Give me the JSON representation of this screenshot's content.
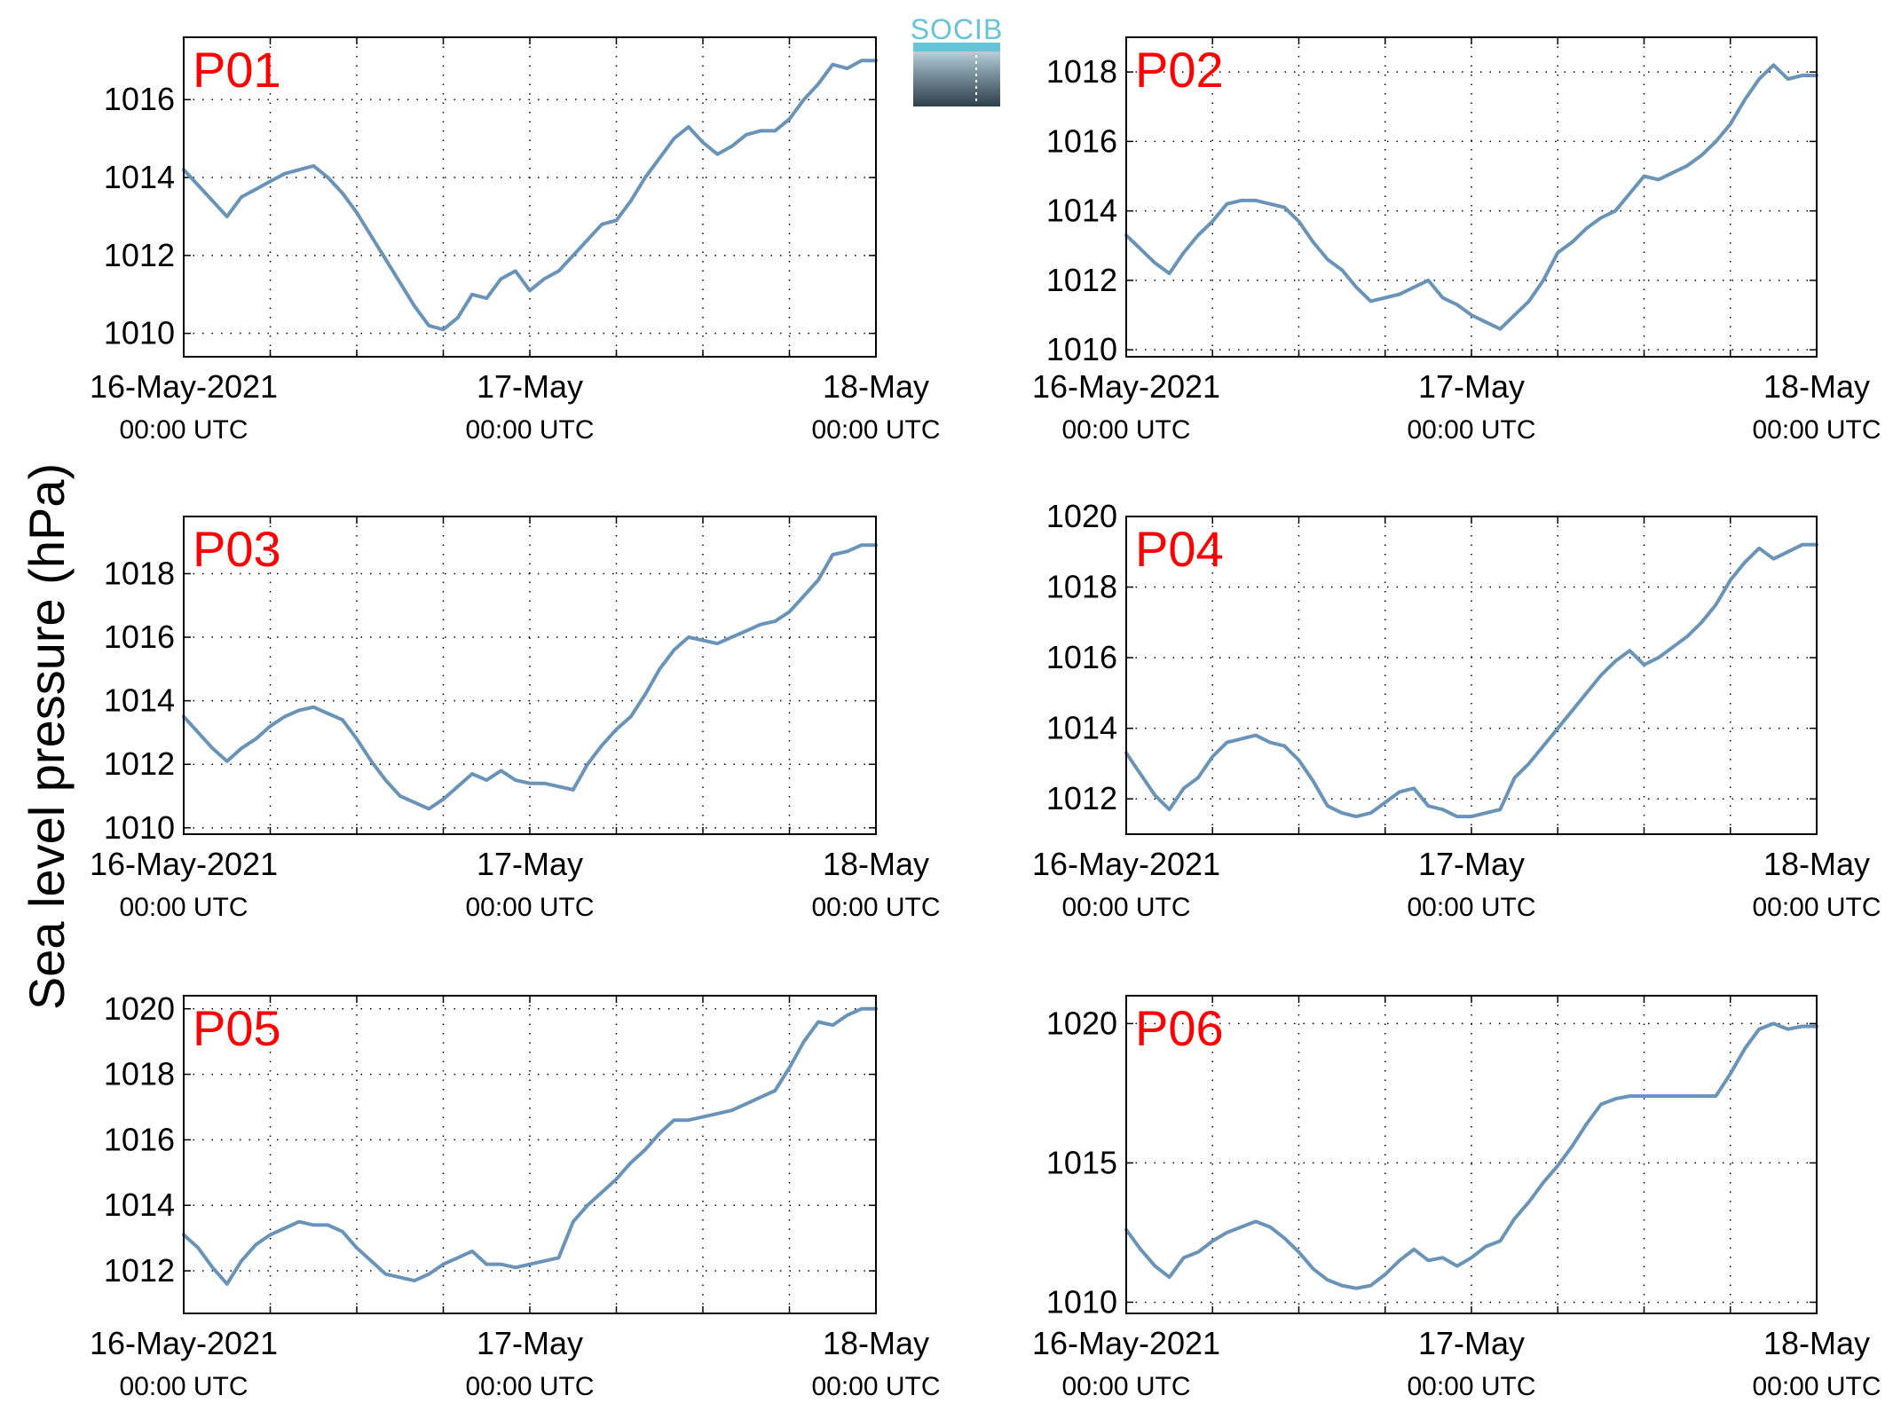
{
  "figure": {
    "ylabel": "Sea level pressure (hPa)",
    "logo_text": "SOCIB",
    "line_color": "#6a93b8",
    "title_color": "#ff0000"
  },
  "chart_data": [
    {
      "type": "line",
      "title": "P01",
      "xlabel": "",
      "ylabel": "",
      "xlim": [
        0,
        48
      ],
      "ylim": [
        1009.4,
        1017.6
      ],
      "grid": true,
      "yticks": [
        1010,
        1012,
        1014,
        1016
      ],
      "xticks": [
        {
          "x": 0,
          "label": "16-May-2021",
          "sub": "00:00 UTC"
        },
        {
          "x": 24,
          "label": "17-May",
          "sub": "00:00 UTC"
        },
        {
          "x": 48,
          "label": "18-May",
          "sub": "00:00 UTC"
        }
      ],
      "series": [
        {
          "x": [
            0,
            1,
            2,
            3,
            4,
            5,
            6,
            7,
            8,
            9,
            10,
            11,
            12,
            13,
            14,
            15,
            16,
            17,
            18,
            19,
            20,
            21,
            22,
            23,
            24,
            25,
            26,
            27,
            28,
            29,
            30,
            31,
            32,
            33,
            34,
            35,
            36,
            37,
            38,
            39,
            40,
            41,
            42,
            43,
            44,
            45,
            46,
            47,
            48
          ],
          "values": [
            1014.2,
            1013.8,
            1013.4,
            1013.0,
            1013.5,
            1013.7,
            1013.9,
            1014.1,
            1014.2,
            1014.3,
            1014.0,
            1013.6,
            1013.1,
            1012.5,
            1011.9,
            1011.3,
            1010.7,
            1010.2,
            1010.1,
            1010.4,
            1011.0,
            1010.9,
            1011.4,
            1011.6,
            1011.1,
            1011.4,
            1011.6,
            1012.0,
            1012.4,
            1012.8,
            1012.9,
            1013.4,
            1014.0,
            1014.5,
            1015.0,
            1015.3,
            1014.9,
            1014.6,
            1014.8,
            1015.1,
            1015.2,
            1015.2,
            1015.5,
            1016.0,
            1016.4,
            1016.9,
            1016.8,
            1017.0,
            1017.0
          ]
        }
      ]
    },
    {
      "type": "line",
      "title": "P02",
      "xlabel": "",
      "ylabel": "",
      "xlim": [
        0,
        48
      ],
      "ylim": [
        1009.8,
        1019.0
      ],
      "grid": true,
      "yticks": [
        1010,
        1012,
        1014,
        1016,
        1018
      ],
      "xticks": [
        {
          "x": 0,
          "label": "16-May-2021",
          "sub": "00:00 UTC"
        },
        {
          "x": 24,
          "label": "17-May",
          "sub": "00:00 UTC"
        },
        {
          "x": 48,
          "label": "18-May",
          "sub": "00:00 UTC"
        }
      ],
      "series": [
        {
          "x": [
            0,
            1,
            2,
            3,
            4,
            5,
            6,
            7,
            8,
            9,
            10,
            11,
            12,
            13,
            14,
            15,
            16,
            17,
            18,
            19,
            20,
            21,
            22,
            23,
            24,
            25,
            26,
            27,
            28,
            29,
            30,
            31,
            32,
            33,
            34,
            35,
            36,
            37,
            38,
            39,
            40,
            41,
            42,
            43,
            44,
            45,
            46,
            47,
            48
          ],
          "values": [
            1013.3,
            1012.9,
            1012.5,
            1012.2,
            1012.8,
            1013.3,
            1013.7,
            1014.2,
            1014.3,
            1014.3,
            1014.2,
            1014.1,
            1013.7,
            1013.1,
            1012.6,
            1012.3,
            1011.8,
            1011.4,
            1011.5,
            1011.6,
            1011.8,
            1012.0,
            1011.5,
            1011.3,
            1011.0,
            1010.8,
            1010.6,
            1011.0,
            1011.4,
            1012.0,
            1012.8,
            1013.1,
            1013.5,
            1013.8,
            1014.0,
            1014.5,
            1015.0,
            1014.9,
            1015.1,
            1015.3,
            1015.6,
            1016.0,
            1016.5,
            1017.2,
            1017.8,
            1018.2,
            1017.8,
            1017.9,
            1017.9
          ]
        }
      ]
    },
    {
      "type": "line",
      "title": "P03",
      "xlabel": "",
      "ylabel": "",
      "xlim": [
        0,
        48
      ],
      "ylim": [
        1009.8,
        1019.8
      ],
      "grid": true,
      "yticks": [
        1010,
        1012,
        1014,
        1016,
        1018
      ],
      "xticks": [
        {
          "x": 0,
          "label": "16-May-2021",
          "sub": "00:00 UTC"
        },
        {
          "x": 24,
          "label": "17-May",
          "sub": "00:00 UTC"
        },
        {
          "x": 48,
          "label": "18-May",
          "sub": "00:00 UTC"
        }
      ],
      "series": [
        {
          "x": [
            0,
            1,
            2,
            3,
            4,
            5,
            6,
            7,
            8,
            9,
            10,
            11,
            12,
            13,
            14,
            15,
            16,
            17,
            18,
            19,
            20,
            21,
            22,
            23,
            24,
            25,
            26,
            27,
            28,
            29,
            30,
            31,
            32,
            33,
            34,
            35,
            36,
            37,
            38,
            39,
            40,
            41,
            42,
            43,
            44,
            45,
            46,
            47,
            48
          ],
          "values": [
            1013.5,
            1013.0,
            1012.5,
            1012.1,
            1012.5,
            1012.8,
            1013.2,
            1013.5,
            1013.7,
            1013.8,
            1013.6,
            1013.4,
            1012.8,
            1012.1,
            1011.5,
            1011.0,
            1010.8,
            1010.6,
            1010.9,
            1011.3,
            1011.7,
            1011.5,
            1011.8,
            1011.5,
            1011.4,
            1011.4,
            1011.3,
            1011.2,
            1012.0,
            1012.6,
            1013.1,
            1013.5,
            1014.2,
            1015.0,
            1015.6,
            1016.0,
            1015.9,
            1015.8,
            1016.0,
            1016.2,
            1016.4,
            1016.5,
            1016.8,
            1017.3,
            1017.8,
            1018.6,
            1018.7,
            1018.9,
            1018.9
          ]
        }
      ]
    },
    {
      "type": "line",
      "title": "P04",
      "xlabel": "",
      "ylabel": "",
      "xlim": [
        0,
        48
      ],
      "ylim": [
        1011.0,
        1020.0
      ],
      "grid": true,
      "yticks": [
        1012,
        1014,
        1016,
        1018,
        1020
      ],
      "xticks": [
        {
          "x": 0,
          "label": "16-May-2021",
          "sub": "00:00 UTC"
        },
        {
          "x": 24,
          "label": "17-May",
          "sub": "00:00 UTC"
        },
        {
          "x": 48,
          "label": "18-May",
          "sub": "00:00 UTC"
        }
      ],
      "series": [
        {
          "x": [
            0,
            1,
            2,
            3,
            4,
            5,
            6,
            7,
            8,
            9,
            10,
            11,
            12,
            13,
            14,
            15,
            16,
            17,
            18,
            19,
            20,
            21,
            22,
            23,
            24,
            25,
            26,
            27,
            28,
            29,
            30,
            31,
            32,
            33,
            34,
            35,
            36,
            37,
            38,
            39,
            40,
            41,
            42,
            43,
            44,
            45,
            46,
            47,
            48
          ],
          "values": [
            1013.3,
            1012.7,
            1012.1,
            1011.7,
            1012.3,
            1012.6,
            1013.2,
            1013.6,
            1013.7,
            1013.8,
            1013.6,
            1013.5,
            1013.1,
            1012.5,
            1011.8,
            1011.6,
            1011.5,
            1011.6,
            1011.9,
            1012.2,
            1012.3,
            1011.8,
            1011.7,
            1011.5,
            1011.5,
            1011.6,
            1011.7,
            1012.6,
            1013.0,
            1013.5,
            1014.0,
            1014.5,
            1015.0,
            1015.5,
            1015.9,
            1016.2,
            1015.8,
            1016.0,
            1016.3,
            1016.6,
            1017.0,
            1017.5,
            1018.2,
            1018.7,
            1019.1,
            1018.8,
            1019.0,
            1019.2,
            1019.2
          ]
        }
      ]
    },
    {
      "type": "line",
      "title": "P05",
      "xlabel": "",
      "ylabel": "",
      "xlim": [
        0,
        48
      ],
      "ylim": [
        1010.7,
        1020.4
      ],
      "grid": true,
      "yticks": [
        1012,
        1014,
        1016,
        1018,
        1020
      ],
      "xticks": [
        {
          "x": 0,
          "label": "16-May-2021",
          "sub": "00:00 UTC"
        },
        {
          "x": 24,
          "label": "17-May",
          "sub": "00:00 UTC"
        },
        {
          "x": 48,
          "label": "18-May",
          "sub": "00:00 UTC"
        }
      ],
      "series": [
        {
          "x": [
            0,
            1,
            2,
            3,
            4,
            5,
            6,
            7,
            8,
            9,
            10,
            11,
            12,
            13,
            14,
            15,
            16,
            17,
            18,
            19,
            20,
            21,
            22,
            23,
            24,
            25,
            26,
            27,
            28,
            29,
            30,
            31,
            32,
            33,
            34,
            35,
            36,
            37,
            38,
            39,
            40,
            41,
            42,
            43,
            44,
            45,
            46,
            47,
            48
          ],
          "values": [
            1013.1,
            1012.7,
            1012.1,
            1011.6,
            1012.3,
            1012.8,
            1013.1,
            1013.3,
            1013.5,
            1013.4,
            1013.4,
            1013.2,
            1012.7,
            1012.3,
            1011.9,
            1011.8,
            1011.7,
            1011.9,
            1012.2,
            1012.4,
            1012.6,
            1012.2,
            1012.2,
            1012.1,
            1012.2,
            1012.3,
            1012.4,
            1013.5,
            1014.0,
            1014.4,
            1014.8,
            1015.3,
            1015.7,
            1016.2,
            1016.6,
            1016.6,
            1016.7,
            1016.8,
            1016.9,
            1017.1,
            1017.3,
            1017.5,
            1018.2,
            1019.0,
            1019.6,
            1019.5,
            1019.8,
            1020.0,
            1020.0
          ]
        }
      ]
    },
    {
      "type": "line",
      "title": "P06",
      "xlabel": "",
      "ylabel": "",
      "xlim": [
        0,
        48
      ],
      "ylim": [
        1009.6,
        1021.0
      ],
      "grid": true,
      "yticks": [
        1010,
        1015,
        1020
      ],
      "xticks": [
        {
          "x": 0,
          "label": "16-May-2021",
          "sub": "00:00 UTC"
        },
        {
          "x": 24,
          "label": "17-May",
          "sub": "00:00 UTC"
        },
        {
          "x": 48,
          "label": "18-May",
          "sub": "00:00 UTC"
        }
      ],
      "series": [
        {
          "x": [
            0,
            1,
            2,
            3,
            4,
            5,
            6,
            7,
            8,
            9,
            10,
            11,
            12,
            13,
            14,
            15,
            16,
            17,
            18,
            19,
            20,
            21,
            22,
            23,
            24,
            25,
            26,
            27,
            28,
            29,
            30,
            31,
            32,
            33,
            34,
            35,
            36,
            37,
            38,
            39,
            40,
            41,
            42,
            43,
            44,
            45,
            46,
            47,
            48
          ],
          "values": [
            1012.6,
            1011.9,
            1011.3,
            1010.9,
            1011.6,
            1011.8,
            1012.2,
            1012.5,
            1012.7,
            1012.9,
            1012.7,
            1012.3,
            1011.8,
            1011.2,
            1010.8,
            1010.6,
            1010.5,
            1010.6,
            1011.0,
            1011.5,
            1011.9,
            1011.5,
            1011.6,
            1011.3,
            1011.6,
            1012.0,
            1012.2,
            1013.0,
            1013.6,
            1014.3,
            1014.9,
            1015.6,
            1016.4,
            1017.1,
            1017.3,
            1017.4,
            1017.4,
            1017.4,
            1017.4,
            1017.4,
            1017.4,
            1017.4,
            1018.2,
            1019.1,
            1019.8,
            1020.0,
            1019.8,
            1019.9,
            1019.9
          ]
        }
      ]
    }
  ]
}
